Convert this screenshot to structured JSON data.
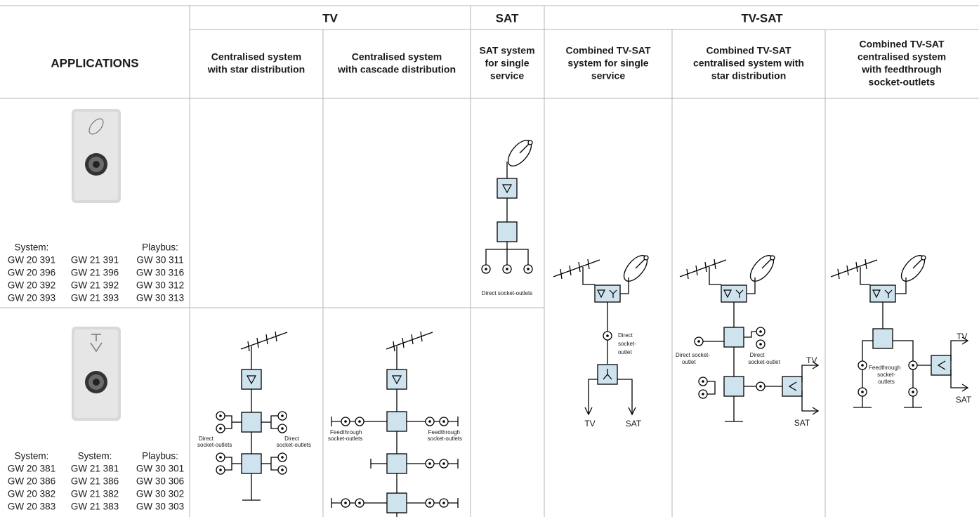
{
  "header": {
    "title": "APPLICATIONS",
    "groups": [
      "TV",
      "SAT",
      "TV-SAT"
    ],
    "columns": [
      [
        "Centralised system",
        "with star distribution"
      ],
      [
        "Centralised system",
        "with cascade distribution"
      ],
      [
        "SAT system",
        "for single",
        "service"
      ],
      [
        "Combined TV-SAT",
        "system for single",
        "service"
      ],
      [
        "Combined TV-SAT",
        "centralised system with",
        "star distribution"
      ],
      [
        "Combined TV-SAT",
        "centralised system",
        "with feedthrough",
        "socket-outlets"
      ]
    ]
  },
  "rows": [
    {
      "codes": [
        [
          "System:",
          "GW 20 391",
          "GW 20 396",
          "GW 20 392",
          "GW 20 393"
        ],
        [
          "GW 21 391",
          "GW 21 396",
          "GW 21 392",
          "GW 21 393"
        ],
        [
          "Playbus:",
          "GW 30 311",
          "GW 30 316",
          "GW 30 312",
          "GW 30 313"
        ]
      ]
    },
    {
      "codes": [
        [
          "System:",
          "GW 20 381",
          "GW 20 386",
          "GW 20 382",
          "GW 20 383"
        ],
        [
          "System:",
          "GW 21 381",
          "GW 21 386",
          "GW 21 382",
          "GW 21 383"
        ],
        [
          "Playbus:",
          "GW 30 301",
          "GW 30 306",
          "GW 30 302",
          "GW 30 303"
        ]
      ]
    }
  ],
  "diagrams": {
    "tv_star": {
      "left": [
        "Direct",
        "socket-outlets"
      ],
      "right": [
        "Direct",
        "socket-outlets"
      ]
    },
    "tv_cascade": {
      "left": [
        "Feedthrough",
        "socket-outlets"
      ],
      "right": [
        "Feedthrough",
        "socket-outlets"
      ]
    },
    "sat_single": {
      "label": "Direct socket-outlets"
    },
    "tvsat_single": {
      "outlet": [
        "Direct",
        "socket-",
        "outlet"
      ],
      "out1": "TV",
      "out2": "SAT"
    },
    "tvsat_star": {
      "left": [
        "Direct socket-",
        "outlet"
      ],
      "right": [
        "Direct",
        "socket-outlet"
      ],
      "out1": "TV",
      "out2": "SAT"
    },
    "tvsat_feed": {
      "outlets": [
        "Feedthrough",
        "socket-",
        "outlets"
      ],
      "out1": "TV",
      "out2": "SAT"
    }
  }
}
